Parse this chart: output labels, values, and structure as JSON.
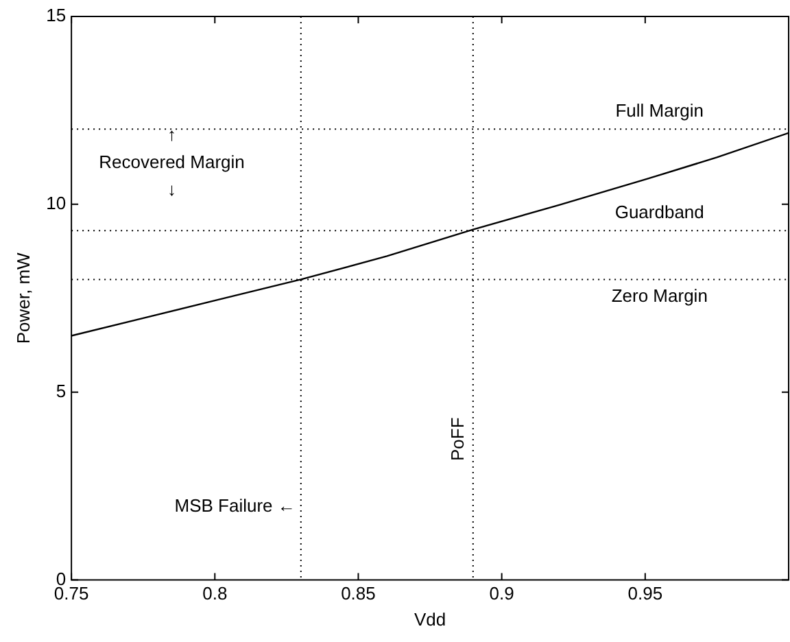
{
  "chart_data": {
    "type": "line",
    "xlabel": "Vdd",
    "ylabel": "Power, mW",
    "x": [
      0.75,
      0.775,
      0.8,
      0.83,
      0.86,
      0.89,
      0.92,
      0.95,
      0.975,
      1.0
    ],
    "series": [
      {
        "color": "#000000",
        "values": [
          6.5,
          6.97,
          7.44,
          8.0,
          8.62,
          9.33,
          9.98,
          10.66,
          11.25,
          11.9
        ]
      }
    ],
    "xlim": [
      0.75,
      1.0
    ],
    "xticks": [
      0.75,
      0.8,
      0.85,
      0.9,
      0.95
    ],
    "ylim": [
      0,
      15
    ],
    "yticks": [
      0,
      5,
      10,
      15
    ],
    "grid": false,
    "legend": false,
    "marker": "none",
    "line_style": "solid",
    "ref_lines": [
      {
        "axis": "x",
        "value": 0.83,
        "label": "MSB Failure ←",
        "line_style": "dotted",
        "color": "#000000"
      },
      {
        "axis": "x",
        "value": 0.89,
        "label": "PoFF",
        "line_style": "dotted",
        "color": "#000000"
      },
      {
        "axis": "y",
        "value": 12,
        "label": "Full Margin",
        "line_style": "dotted",
        "color": "#000000"
      },
      {
        "axis": "y",
        "value": 9.3,
        "label": "Guardband",
        "line_style": "dotted",
        "color": "#000000"
      },
      {
        "axis": "y",
        "value": 8,
        "label": "Zero Margin",
        "line_style": "dotted",
        "color": "#000000"
      }
    ],
    "annotations": [
      "↑\nRecovered Margin\n↓"
    ]
  }
}
